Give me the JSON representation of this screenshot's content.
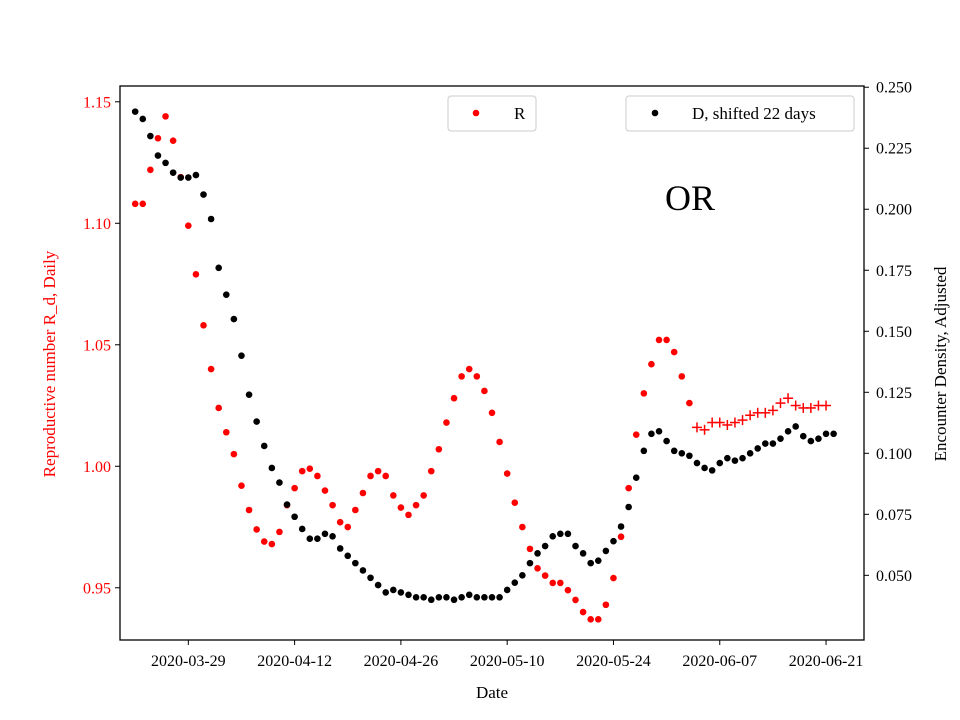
{
  "chart_data": {
    "type": "scatter",
    "xlabel": "Date",
    "ylabel_left": "Reproductive number R_d, Daily",
    "ylabel_right": "Encounter Density, Adjusted",
    "annotation": "OR",
    "x_start_date": "2020-03-22",
    "xlim": [
      "2020-03-20",
      "2020-06-26"
    ],
    "x_ticks": [
      "2020-03-29",
      "2020-04-12",
      "2020-04-26",
      "2020-05-10",
      "2020-05-24",
      "2020-06-07",
      "2020-06-21"
    ],
    "ylim_left": [
      0.9285,
      1.1565
    ],
    "yticks_left": [
      "0.95",
      "1.00",
      "1.05",
      "1.10",
      "1.15"
    ],
    "ylim_right": [
      0.0235,
      0.2505
    ],
    "yticks_right": [
      "0.050",
      "0.075",
      "0.100",
      "0.125",
      "0.150",
      "0.175",
      "0.200",
      "0.225",
      "0.250"
    ],
    "colors": {
      "R": "#ff0000",
      "D": "#000000",
      "left_axis": "#ff0000",
      "right_axis": "#000000"
    },
    "legends": [
      {
        "label": "R",
        "marker": "dot",
        "color": "#ff0000",
        "placement": "top-center"
      },
      {
        "label": "D, shifted 22 days",
        "marker": "dot",
        "color": "#000000",
        "placement": "top-right"
      }
    ],
    "series": [
      {
        "name": "R",
        "axis": "left",
        "marker": "dot",
        "color": "#ff0000",
        "values": [
          1.108,
          1.108,
          1.122,
          1.135,
          1.144,
          1.134,
          1.119,
          1.099,
          1.079,
          1.058,
          1.04,
          1.024,
          1.014,
          1.005,
          0.992,
          0.982,
          0.974,
          0.969,
          0.968,
          0.973,
          0.984,
          0.991,
          0.998,
          0.999,
          0.996,
          0.99,
          0.984,
          0.977,
          0.975,
          0.982,
          0.989,
          0.996,
          0.998,
          0.996,
          0.988,
          0.983,
          0.98,
          0.984,
          0.988,
          0.998,
          1.007,
          1.018,
          1.028,
          1.037,
          1.04,
          1.037,
          1.031,
          1.022,
          1.01,
          0.997,
          0.985,
          0.975,
          0.966,
          0.958,
          0.955,
          0.952,
          0.952,
          0.949,
          0.945,
          0.94,
          0.937,
          0.937,
          0.943,
          0.954,
          0.971,
          0.991,
          1.013,
          1.03,
          1.042,
          1.052,
          1.052,
          1.047,
          1.037,
          1.026
        ]
      },
      {
        "name": "R (projected)",
        "axis": "left",
        "marker": "plus",
        "color": "#ff0000",
        "x_offset_days": 74,
        "values": [
          1.016,
          1.015,
          1.018,
          1.018,
          1.017,
          1.018,
          1.019,
          1.021,
          1.022,
          1.022,
          1.023,
          1.026,
          1.028,
          1.025,
          1.024,
          1.024,
          1.025,
          1.025
        ]
      },
      {
        "name": "D, shifted 22 days",
        "axis": "right",
        "marker": "dot",
        "color": "#000000",
        "values": [
          0.24,
          0.237,
          0.23,
          0.222,
          0.219,
          0.215,
          0.213,
          0.213,
          0.214,
          0.206,
          0.196,
          0.176,
          0.165,
          0.155,
          0.14,
          0.124,
          0.113,
          0.103,
          0.094,
          0.088,
          0.079,
          0.074,
          0.069,
          0.065,
          0.065,
          0.067,
          0.066,
          0.061,
          0.058,
          0.055,
          0.052,
          0.049,
          0.046,
          0.043,
          0.044,
          0.043,
          0.042,
          0.041,
          0.041,
          0.04,
          0.041,
          0.041,
          0.04,
          0.041,
          0.042,
          0.041,
          0.041,
          0.041,
          0.041,
          0.044,
          0.047,
          0.05,
          0.055,
          0.059,
          0.062,
          0.066,
          0.067,
          0.067,
          0.062,
          0.059,
          0.055,
          0.056,
          0.06,
          0.064,
          0.07,
          0.078,
          0.09,
          0.101,
          0.108,
          0.109,
          0.105,
          0.101,
          0.1,
          0.099,
          0.096,
          0.094,
          0.093,
          0.096,
          0.098,
          0.097,
          0.098,
          0.1,
          0.102,
          0.104,
          0.104,
          0.106,
          0.109,
          0.111,
          0.107,
          0.105,
          0.106,
          0.108,
          0.108
        ]
      }
    ]
  }
}
